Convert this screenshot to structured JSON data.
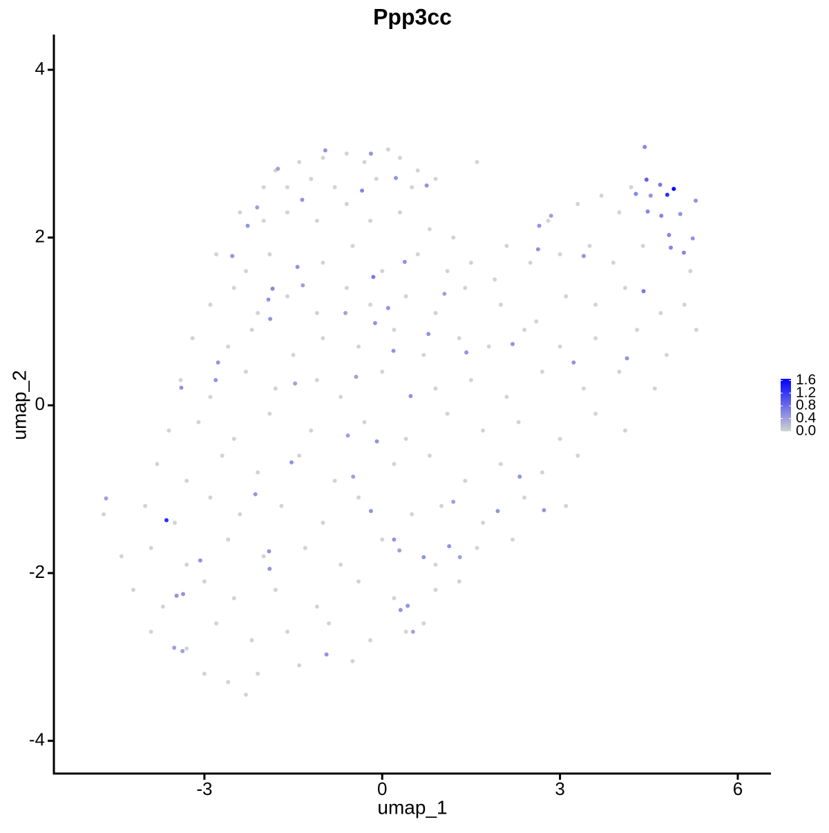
{
  "chart_data": {
    "type": "scatter",
    "title": "Ppp3cc",
    "xlabel": "umap_1",
    "ylabel": "umap_2",
    "xlim": [
      -5.54,
      6.56
    ],
    "ylim": [
      -4.39,
      4.42
    ],
    "xticks": [
      -3,
      0,
      3,
      6
    ],
    "yticks": [
      -4,
      -2,
      0,
      2,
      4
    ],
    "grid": false,
    "color_scale": [
      "lightgrey",
      "blue"
    ],
    "colorlim": [
      0,
      1.65
    ],
    "colorticks": [
      {
        "value": 0,
        "label": "0.0"
      },
      {
        "value": 0.4,
        "label": "0.4"
      },
      {
        "value": 0.8,
        "label": "0.8"
      },
      {
        "value": 1.2,
        "label": "1.2"
      },
      {
        "value": 1.6,
        "label": "1.6"
      }
    ],
    "legend": "right",
    "x": [
      -1.8,
      -1.4,
      -1.0,
      -0.6,
      -0.3,
      0.1,
      0.3,
      0.6,
      0.9,
      -2.0,
      -1.6,
      -1.2,
      -0.8,
      -0.1,
      0.5,
      1.6,
      -2.4,
      -2.0,
      -1.6,
      -1.1,
      -0.6,
      -0.2,
      0.3,
      0.8,
      1.2,
      2.1,
      2.8,
      3.3,
      3.7,
      4.0,
      4.2,
      -2.8,
      -2.3,
      -1.9,
      -1.0,
      -0.5,
      0.0,
      0.6,
      1.1,
      1.5,
      1.9,
      2.5,
      3.0,
      3.5,
      3.9,
      4.4,
      5.2,
      -2.9,
      -2.5,
      -2.1,
      -1.6,
      -1.1,
      -0.6,
      -0.2,
      0.4,
      0.9,
      1.4,
      2.0,
      2.6,
      3.1,
      3.6,
      4.1,
      4.7,
      5.1,
      -3.2,
      -2.6,
      -2.2,
      -1.5,
      -1.0,
      -0.4,
      0.2,
      0.7,
      1.3,
      1.8,
      2.4,
      3.0,
      3.6,
      4.3,
      4.8,
      5.3,
      -3.4,
      -2.9,
      -2.3,
      -1.8,
      -1.1,
      -0.7,
      0.0,
      0.9,
      1.5,
      2.1,
      2.7,
      3.4,
      4.0,
      4.6,
      -3.6,
      -3.1,
      -2.5,
      -1.9,
      -1.2,
      -0.3,
      0.4,
      1.1,
      1.7,
      2.3,
      3.0,
      3.6,
      4.1,
      -3.8,
      -3.3,
      -2.7,
      -2.1,
      -1.4,
      -0.8,
      0.2,
      0.8,
      1.4,
      2.0,
      2.7,
      3.3,
      -4.7,
      -4.0,
      -3.5,
      -2.9,
      -2.4,
      -1.7,
      -1.0,
      -0.4,
      0.5,
      1.0,
      1.7,
      2.4,
      3.1,
      -4.4,
      -3.9,
      -3.3,
      -2.6,
      -2.0,
      -1.3,
      -0.7,
      0.0,
      0.9,
      1.6,
      2.2,
      -4.2,
      -3.7,
      -3.0,
      -2.5,
      -1.8,
      -1.1,
      -0.4,
      0.2,
      0.9,
      1.3,
      -3.9,
      -3.3,
      -2.8,
      -2.2,
      -1.6,
      -0.9,
      -0.2,
      0.4,
      0.7,
      -3.0,
      -2.6,
      -2.1,
      -1.4,
      -0.5,
      -2.3,
      4.43,
      4.69,
      4.28,
      4.48,
      4.41,
      4.84,
      5.03,
      5.24,
      5.09,
      4.87,
      4.53,
      4.71,
      5.29,
      -0.15,
      -0.34,
      -0.19,
      0.38,
      0.23,
      0.75,
      -0.96,
      -1.35,
      -1.76,
      -2.27,
      -2.11,
      -2.53,
      -1.85,
      -1.92,
      -1.89,
      -1.43,
      -1.34,
      -2.77,
      -2.81,
      -3.39,
      -1.47,
      -0.62,
      -0.12,
      0.1,
      0.19,
      -0.44,
      0.48,
      0.78,
      1.05,
      1.42,
      2.2,
      3.23,
      4.13,
      2.65,
      2.85,
      2.63,
      3.4,
      -0.09,
      -0.58,
      -1.53,
      -0.49,
      -2.14,
      -0.19,
      1.2,
      2.32,
      1.95,
      2.73,
      0.2,
      1.13,
      0.7,
      1.31,
      0.29,
      -1.91,
      -1.9,
      -3.07,
      -3.36,
      -3.47,
      0.43,
      0.31,
      0.52,
      -0.94,
      -3.51,
      -3.37,
      -4.66,
      4.46,
      -3.64,
      4.81,
      4.92
    ],
    "y": [
      2.8,
      2.9,
      2.95,
      3.0,
      2.9,
      3.05,
      2.95,
      2.8,
      2.7,
      2.6,
      2.6,
      2.7,
      2.6,
      2.7,
      2.6,
      2.9,
      2.3,
      2.2,
      2.3,
      2.2,
      2.4,
      2.2,
      2.3,
      2.1,
      2.0,
      1.9,
      2.2,
      2.4,
      2.5,
      2.3,
      2.6,
      1.8,
      1.6,
      1.8,
      1.7,
      1.9,
      1.6,
      1.8,
      1.6,
      1.7,
      1.5,
      1.7,
      1.8,
      1.9,
      1.7,
      1.9,
      1.6,
      1.2,
      1.4,
      1.1,
      1.3,
      1.1,
      1.4,
      1.2,
      1.3,
      1.1,
      1.4,
      1.2,
      1.0,
      1.3,
      1.2,
      1.4,
      1.1,
      1.2,
      0.8,
      0.7,
      0.9,
      0.6,
      0.8,
      0.7,
      0.9,
      0.6,
      0.8,
      0.7,
      0.9,
      0.7,
      0.8,
      0.9,
      0.6,
      0.9,
      0.3,
      0.1,
      0.4,
      0.2,
      0.3,
      0.1,
      0.4,
      0.2,
      0.3,
      0.1,
      0.4,
      0.2,
      0.4,
      0.2,
      -0.3,
      -0.2,
      -0.4,
      -0.1,
      -0.3,
      -0.2,
      -0.4,
      -0.1,
      -0.3,
      -0.2,
      -0.4,
      -0.1,
      -0.3,
      -0.7,
      -0.9,
      -0.6,
      -0.8,
      -0.6,
      -0.9,
      -0.7,
      -0.6,
      -0.9,
      -0.7,
      -0.8,
      -0.6,
      -1.3,
      -1.2,
      -1.4,
      -1.1,
      -1.3,
      -1.2,
      -1.4,
      -1.1,
      -1.3,
      -1.2,
      -1.4,
      -1.1,
      -1.2,
      -1.8,
      -1.7,
      -1.9,
      -1.6,
      -1.8,
      -1.7,
      -1.9,
      -1.6,
      -1.9,
      -1.7,
      -1.6,
      -2.2,
      -2.4,
      -2.1,
      -2.3,
      -2.2,
      -2.4,
      -2.1,
      -2.3,
      -2.2,
      -2.1,
      -2.7,
      -2.9,
      -2.6,
      -2.8,
      -2.7,
      -2.6,
      -2.8,
      -2.7,
      -2.6,
      -3.2,
      -3.3,
      -3.2,
      -3.1,
      -3.05,
      -3.45,
      3.08,
      2.63,
      2.52,
      2.31,
      1.36,
      2.03,
      2.28,
      1.99,
      1.82,
      1.88,
      2.5,
      2.26,
      2.44,
      1.53,
      2.56,
      3.0,
      1.71,
      2.71,
      2.62,
      3.04,
      2.45,
      2.82,
      2.14,
      2.36,
      1.78,
      1.39,
      1.26,
      1.03,
      1.65,
      1.43,
      0.51,
      0.3,
      0.21,
      0.26,
      1.1,
      0.98,
      1.16,
      0.65,
      0.34,
      0.11,
      0.85,
      1.33,
      0.63,
      0.73,
      0.51,
      0.56,
      2.14,
      2.26,
      1.86,
      1.78,
      -0.43,
      -0.36,
      -0.68,
      -0.85,
      -1.06,
      -1.26,
      -1.15,
      -0.85,
      -1.26,
      -1.25,
      -1.6,
      -1.68,
      -1.81,
      -1.81,
      -1.73,
      -1.74,
      -1.95,
      -1.85,
      -2.25,
      -2.27,
      -2.39,
      -2.44,
      -2.7,
      -2.97,
      -2.89,
      -2.93,
      -1.11,
      2.69,
      -1.37,
      2.51,
      2.58
    ],
    "values": [
      0,
      0,
      0,
      0,
      0,
      0,
      0,
      0,
      0,
      0,
      0,
      0,
      0,
      0,
      0,
      0,
      0,
      0,
      0,
      0,
      0,
      0,
      0,
      0,
      0,
      0,
      0,
      0,
      0,
      0,
      0,
      0,
      0,
      0,
      0,
      0,
      0,
      0,
      0,
      0,
      0,
      0,
      0,
      0,
      0,
      0,
      0,
      0,
      0,
      0,
      0,
      0,
      0,
      0,
      0,
      0,
      0,
      0,
      0,
      0,
      0,
      0,
      0,
      0,
      0,
      0,
      0,
      0,
      0,
      0,
      0,
      0,
      0,
      0,
      0,
      0,
      0,
      0,
      0,
      0,
      0,
      0,
      0,
      0,
      0,
      0,
      0,
      0,
      0,
      0,
      0,
      0,
      0,
      0,
      0,
      0,
      0,
      0,
      0,
      0,
      0,
      0,
      0,
      0,
      0,
      0,
      0,
      0,
      0,
      0,
      0,
      0,
      0,
      0,
      0,
      0,
      0,
      0,
      0,
      0,
      0,
      0,
      0,
      0,
      0,
      0,
      0,
      0,
      0,
      0,
      0,
      0,
      0,
      0,
      0,
      0,
      0,
      0,
      0,
      0,
      0,
      0,
      0,
      0,
      0,
      0,
      0,
      0,
      0,
      0,
      0,
      0,
      0,
      0,
      0,
      0,
      0,
      0,
      0,
      0,
      0,
      0,
      0,
      0,
      0,
      0,
      0,
      0,
      0.6,
      0.7,
      0.6,
      0.6,
      0.7,
      0.6,
      0.5,
      0.5,
      0.6,
      0.6,
      0.5,
      0.6,
      0.5,
      0.7,
      0.6,
      0.5,
      0.5,
      0.5,
      0.5,
      0.5,
      0.5,
      0.4,
      0.5,
      0.4,
      0.5,
      0.6,
      0.5,
      0.5,
      0.5,
      0.4,
      0.5,
      0.5,
      0.5,
      0.4,
      0.4,
      0.5,
      0.5,
      0.5,
      0.4,
      0.5,
      0.5,
      0.4,
      0.5,
      0.5,
      0.5,
      0.5,
      0.5,
      0.4,
      0.5,
      0.5,
      0.5,
      0.4,
      0.5,
      0.4,
      0.5,
      0.5,
      0.4,
      0.5,
      0.5,
      0.5,
      0.5,
      0.5,
      0.5,
      0.4,
      0.4,
      0.5,
      0.5,
      0.5,
      0.5,
      0.5,
      0.5,
      0.5,
      0.4,
      0.5,
      0.4,
      0.4,
      0.4,
      0.9,
      1.3,
      1.3,
      1.6
    ]
  }
}
